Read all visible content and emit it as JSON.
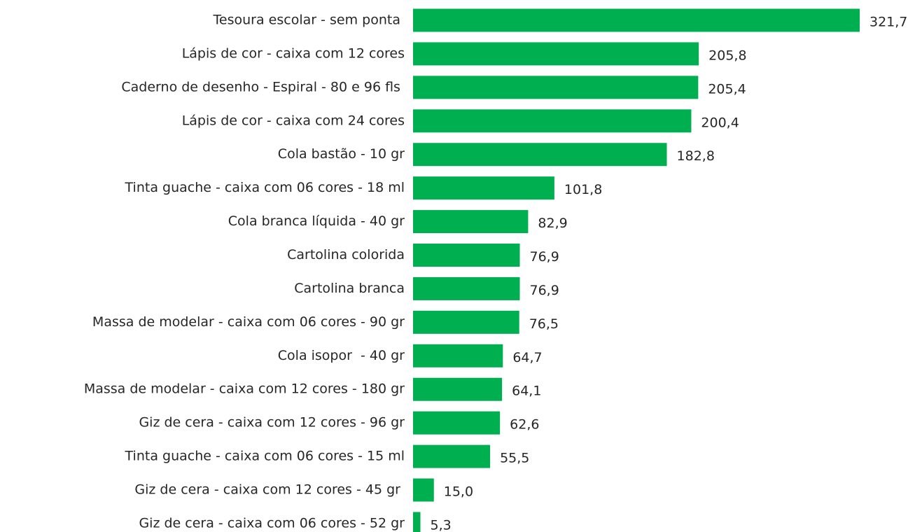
{
  "chart_data": {
    "type": "bar",
    "orientation": "horizontal",
    "color": "#00b050",
    "categories": [
      "Tesoura escolar - sem ponta ",
      "Lápis de cor - caixa com 12 cores",
      "Caderno de desenho - Espiral - 80 e 96 fls ",
      "Lápis de cor - caixa com 24 cores",
      "Cola bastão - 10 gr",
      "Tinta guache - caixa com 06 cores - 18 ml",
      "Cola branca líquida - 40 gr",
      "Cartolina colorida",
      "Cartolina branca",
      "Massa de modelar - caixa com 06 cores - 90 gr",
      "Cola isopor  - 40 gr",
      "Massa de modelar - caixa com 12 cores - 180 gr",
      "Giz de cera - caixa com 12 cores - 96 gr",
      "Tinta guache - caixa com 06 cores - 15 ml",
      "Giz de cera - caixa com 12 cores - 45 gr ",
      "Giz de cera - caixa com 06 cores - 52 gr"
    ],
    "values": [
      321.7,
      205.8,
      205.4,
      200.4,
      182.8,
      101.8,
      82.9,
      76.9,
      76.9,
      76.5,
      64.7,
      64.1,
      62.6,
      55.5,
      15.0,
      5.3
    ],
    "value_labels": [
      "321,7",
      "205,8",
      "205,4",
      "200,4",
      "182,8",
      "101,8",
      "82,9",
      "76,9",
      "76,9",
      "76,5",
      "64,7",
      "64,1",
      "62,6",
      "55,5",
      "15,0",
      "5,3"
    ]
  }
}
